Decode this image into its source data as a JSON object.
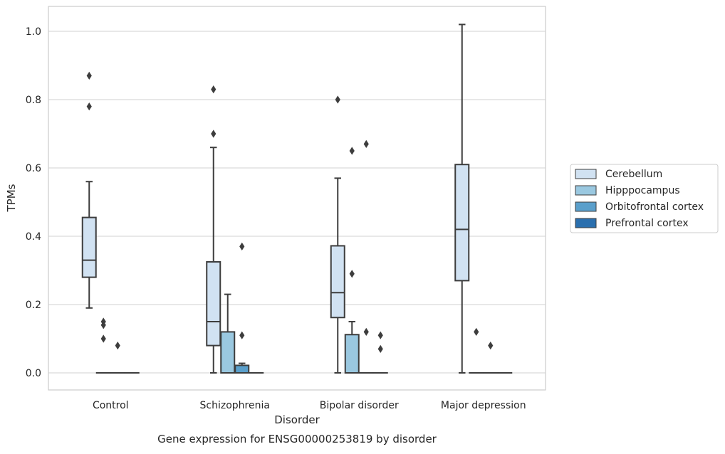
{
  "chart_data": {
    "type": "boxplot",
    "title": "",
    "caption": "Gene expression for ENSG00000253819 by disorder",
    "xlabel": "Disorder",
    "ylabel": "TPMs",
    "ylim": [
      -0.05,
      1.07
    ],
    "yticks": [
      "0.0",
      "0.2",
      "0.4",
      "0.6",
      "0.8",
      "1.0"
    ],
    "ytick_values": [
      0.0,
      0.2,
      0.4,
      0.6,
      0.8,
      1.0
    ],
    "grid": true,
    "legend_position": "right",
    "categories": [
      "Control",
      "Schizophrenia",
      "Bipolar disorder",
      "Major depression"
    ],
    "series": [
      {
        "name": "Cerebellum",
        "color": "#d1e2f2",
        "boxes": [
          {
            "category": "Control",
            "whisker_low": 0.19,
            "q1": 0.28,
            "median": 0.33,
            "q3": 0.455,
            "whisker_high": 0.56,
            "outliers": [
              0.87,
              0.78
            ]
          },
          {
            "category": "Schizophrenia",
            "whisker_low": 0.0,
            "q1": 0.08,
            "median": 0.15,
            "q3": 0.325,
            "whisker_high": 0.66,
            "outliers": [
              0.83,
              0.7
            ]
          },
          {
            "category": "Bipolar disorder",
            "whisker_low": 0.0,
            "q1": 0.162,
            "median": 0.235,
            "q3": 0.372,
            "whisker_high": 0.57,
            "outliers": [
              0.8
            ]
          },
          {
            "category": "Major depression",
            "whisker_low": 0.0,
            "q1": 0.27,
            "median": 0.42,
            "q3": 0.61,
            "whisker_high": 1.02,
            "outliers": []
          }
        ]
      },
      {
        "name": "Hipppocampus",
        "color": "#9ac8e0",
        "boxes": [
          {
            "category": "Control",
            "whisker_low": 0.0,
            "q1": 0.0,
            "median": 0.0,
            "q3": 0.0,
            "whisker_high": 0.0,
            "outliers": [
              0.15,
              0.14,
              0.1
            ]
          },
          {
            "category": "Schizophrenia",
            "whisker_low": 0.0,
            "q1": 0.0,
            "median": 0.0,
            "q3": 0.12,
            "whisker_high": 0.23,
            "outliers": []
          },
          {
            "category": "Bipolar disorder",
            "whisker_low": 0.0,
            "q1": 0.0,
            "median": 0.0,
            "q3": 0.112,
            "whisker_high": 0.15,
            "outliers": [
              0.65,
              0.29
            ]
          },
          {
            "category": "Major depression",
            "whisker_low": 0.0,
            "q1": 0.0,
            "median": 0.0,
            "q3": 0.0,
            "whisker_high": 0.0,
            "outliers": [
              0.12
            ]
          }
        ]
      },
      {
        "name": "Orbitofrontal cortex",
        "color": "#5a9fcb",
        "boxes": [
          {
            "category": "Control",
            "whisker_low": 0.0,
            "q1": 0.0,
            "median": 0.0,
            "q3": 0.0,
            "whisker_high": 0.0,
            "outliers": [
              0.08
            ]
          },
          {
            "category": "Schizophrenia",
            "whisker_low": 0.0,
            "q1": 0.0,
            "median": 0.0,
            "q3": 0.022,
            "whisker_high": 0.028,
            "outliers": [
              0.37,
              0.11
            ]
          },
          {
            "category": "Bipolar disorder",
            "whisker_low": 0.0,
            "q1": 0.0,
            "median": 0.0,
            "q3": 0.0,
            "whisker_high": 0.0,
            "outliers": [
              0.67,
              0.12
            ]
          },
          {
            "category": "Major depression",
            "whisker_low": 0.0,
            "q1": 0.0,
            "median": 0.0,
            "q3": 0.0,
            "whisker_high": 0.0,
            "outliers": [
              0.08
            ]
          }
        ]
      },
      {
        "name": "Prefrontal cortex",
        "color": "#2a6fae",
        "boxes": [
          {
            "category": "Control",
            "whisker_low": 0.0,
            "q1": 0.0,
            "median": 0.0,
            "q3": 0.0,
            "whisker_high": 0.0,
            "outliers": []
          },
          {
            "category": "Schizophrenia",
            "whisker_low": 0.0,
            "q1": 0.0,
            "median": 0.0,
            "q3": 0.0,
            "whisker_high": 0.0,
            "outliers": []
          },
          {
            "category": "Bipolar disorder",
            "whisker_low": 0.0,
            "q1": 0.0,
            "median": 0.0,
            "q3": 0.0,
            "whisker_high": 0.0,
            "outliers": [
              0.11,
              0.07
            ]
          },
          {
            "category": "Major depression",
            "whisker_low": 0.0,
            "q1": 0.0,
            "median": 0.0,
            "q3": 0.0,
            "whisker_high": 0.0,
            "outliers": []
          }
        ]
      }
    ]
  }
}
